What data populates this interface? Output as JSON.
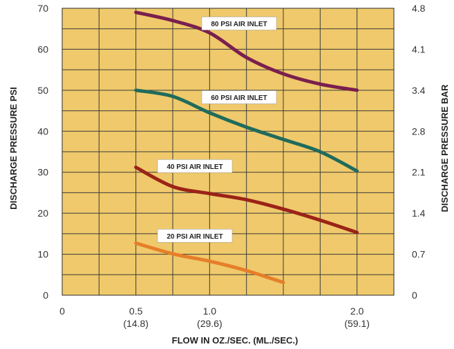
{
  "chart_data": {
    "type": "line",
    "title": "",
    "xlabel": "FLOW IN OZ./SEC. (ML./SEC.)",
    "ylabel": "DISCHARGE PRESSURE PSI",
    "ylabel_right": "DISCHARGE PRESSURE BAR",
    "xlim": [
      0,
      2.25
    ],
    "ylim": [
      0,
      70
    ],
    "grid": true,
    "background_color": "#efc96b",
    "grid_color": "#3a3a3a",
    "x_ticks": [
      {
        "value": 0,
        "label": "0",
        "sublabel": ""
      },
      {
        "value": 0.5,
        "label": "0.5",
        "sublabel": "(14.8)"
      },
      {
        "value": 1.0,
        "label": "1.0",
        "sublabel": "(29.6)"
      },
      {
        "value": 2.0,
        "label": "2.0",
        "sublabel": "(59.1)"
      }
    ],
    "y_ticks": [
      0,
      10,
      20,
      30,
      40,
      50,
      60,
      70
    ],
    "y_ticks_right": [
      {
        "value": 0,
        "label": "0"
      },
      {
        "value": 10,
        "label": "0.7"
      },
      {
        "value": 20,
        "label": "1.4"
      },
      {
        "value": 30,
        "label": "2.1"
      },
      {
        "value": 40,
        "label": "2.8"
      },
      {
        "value": 50,
        "label": "3.4"
      },
      {
        "value": 60,
        "label": "4.1"
      },
      {
        "value": 70,
        "label": "4.8"
      }
    ],
    "series": [
      {
        "name": "80 PSI AIR INLET",
        "color": "#7a1f4e",
        "label_at": [
          1.2,
          66.3
        ],
        "x": [
          0.5,
          0.75,
          1.0,
          1.25,
          1.5,
          1.75,
          2.0
        ],
        "y": [
          69,
          67,
          64,
          58,
          54,
          51.5,
          50
        ]
      },
      {
        "name": "60 PSI AIR INLET",
        "color": "#1f6b5c",
        "label_at": [
          1.2,
          48.3
        ],
        "x": [
          0.5,
          0.75,
          1.0,
          1.25,
          1.5,
          1.75,
          2.0
        ],
        "y": [
          50,
          48.5,
          44.5,
          41,
          38,
          35,
          30.3
        ]
      },
      {
        "name": "40 PSI AIR INLET",
        "color": "#9b2318",
        "label_at": [
          0.9,
          31.5
        ],
        "x": [
          0.5,
          0.75,
          1.0,
          1.25,
          1.5,
          1.75,
          2.0
        ],
        "y": [
          31.2,
          26.5,
          24.8,
          23.3,
          21,
          18.3,
          15.3
        ]
      },
      {
        "name": "20 PSI AIR INLET",
        "color": "#e67e2a",
        "label_at": [
          0.9,
          14.5
        ],
        "x": [
          0.5,
          0.75,
          1.0,
          1.25,
          1.5
        ],
        "y": [
          12.7,
          10.1,
          8.3,
          6,
          3.1
        ]
      }
    ]
  }
}
